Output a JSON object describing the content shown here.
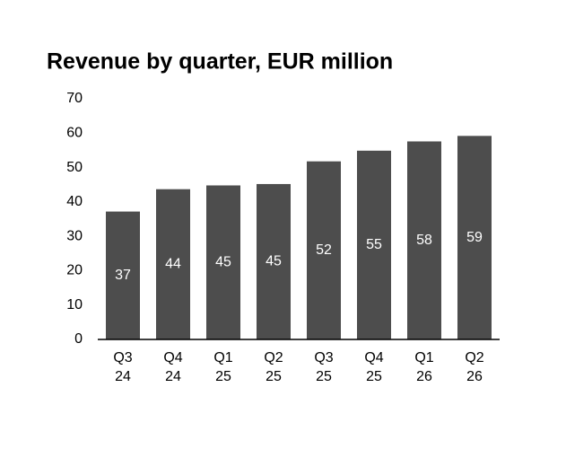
{
  "chart_data": {
    "type": "bar",
    "title": "Revenue by quarter, EUR million",
    "categories": [
      "Q3 24",
      "Q4 24",
      "Q1 25",
      "Q2 25",
      "Q3 25",
      "Q4 25",
      "Q1 26",
      "Q2 26"
    ],
    "values": [
      37.2,
      43.7,
      44.8,
      45.2,
      51.8,
      54.9,
      57.6,
      59.2
    ],
    "value_labels": [
      "37",
      "44",
      "45",
      "45",
      "52",
      "55",
      "58",
      "59"
    ],
    "color": "#4d4d4d",
    "ylim": [
      0,
      70
    ],
    "yticks": [
      0,
      10,
      20,
      30,
      40,
      50,
      60,
      70
    ],
    "grid": false
  }
}
